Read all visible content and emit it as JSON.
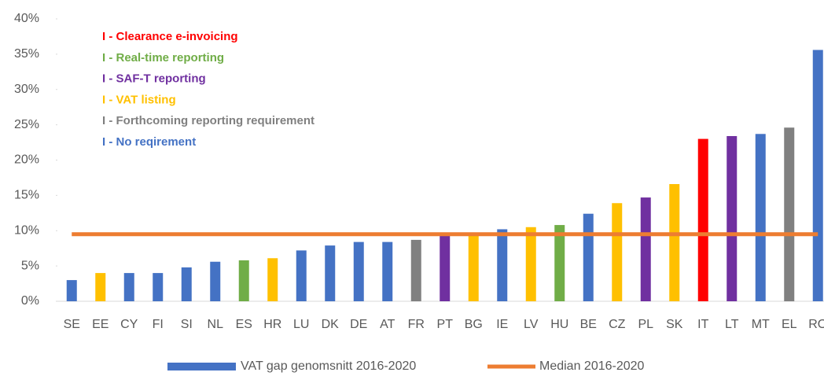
{
  "chart_data": {
    "type": "bar",
    "categories": [
      "SE",
      "EE",
      "CY",
      "FI",
      "SI",
      "NL",
      "ES",
      "HR",
      "LU",
      "DK",
      "DE",
      "AT",
      "FR",
      "PT",
      "BG",
      "IE",
      "LV",
      "HU",
      "BE",
      "CZ",
      "PL",
      "SK",
      "IT",
      "LT",
      "MT",
      "EL",
      "RO"
    ],
    "series": [
      {
        "name": "VAT gap genomsnitt 2016-2020",
        "color": "#4472c4",
        "values": [
          3.0,
          4.0,
          4.0,
          4.0,
          4.8,
          5.6,
          5.8,
          6.1,
          7.2,
          7.9,
          8.4,
          8.4,
          8.7,
          9.5,
          9.7,
          10.2,
          10.5,
          10.8,
          12.4,
          13.9,
          14.7,
          16.6,
          23.0,
          23.4,
          23.7,
          24.6,
          35.6
        ],
        "colors": [
          "#4472c4",
          "#ffc000",
          "#4472c4",
          "#4472c4",
          "#4472c4",
          "#4472c4",
          "#70ad47",
          "#ffc000",
          "#4472c4",
          "#4472c4",
          "#4472c4",
          "#4472c4",
          "#808080",
          "#7030a0",
          "#ffc000",
          "#4472c4",
          "#ffc000",
          "#70ad47",
          "#4472c4",
          "#ffc000",
          "#7030a0",
          "#ffc000",
          "#ff0000",
          "#7030a0",
          "#4472c4",
          "#808080",
          "#4472c4"
        ]
      },
      {
        "name": "Median 2016-2020",
        "color": "#ed7d31",
        "type": "line",
        "value": 9.5
      }
    ],
    "ylim": [
      0,
      40
    ],
    "yticks": [
      {
        "value": 0,
        "label": "0%"
      },
      {
        "value": 5,
        "label": "5%"
      },
      {
        "value": 10,
        "label": "10%"
      },
      {
        "value": 15,
        "label": "15%"
      },
      {
        "value": 20,
        "label": "20%"
      },
      {
        "value": 25,
        "label": "25%"
      },
      {
        "value": 30,
        "label": "30%"
      },
      {
        "value": 35,
        "label": "35%"
      },
      {
        "value": 40,
        "label": "40%"
      }
    ],
    "annotations": [
      {
        "text": "I - Clearance e-invoicing",
        "color": "#ff0000"
      },
      {
        "text": "I - Real-time reporting",
        "color": "#70ad47"
      },
      {
        "text": "I - SAF-T reporting",
        "color": "#7030a0"
      },
      {
        "text": "I - VAT listing",
        "color": "#ffc000"
      },
      {
        "text": "I - Forthcoming reporting requirement",
        "color": "#808080"
      },
      {
        "text": "I - No reqirement",
        "color": "#4472c4"
      }
    ]
  }
}
